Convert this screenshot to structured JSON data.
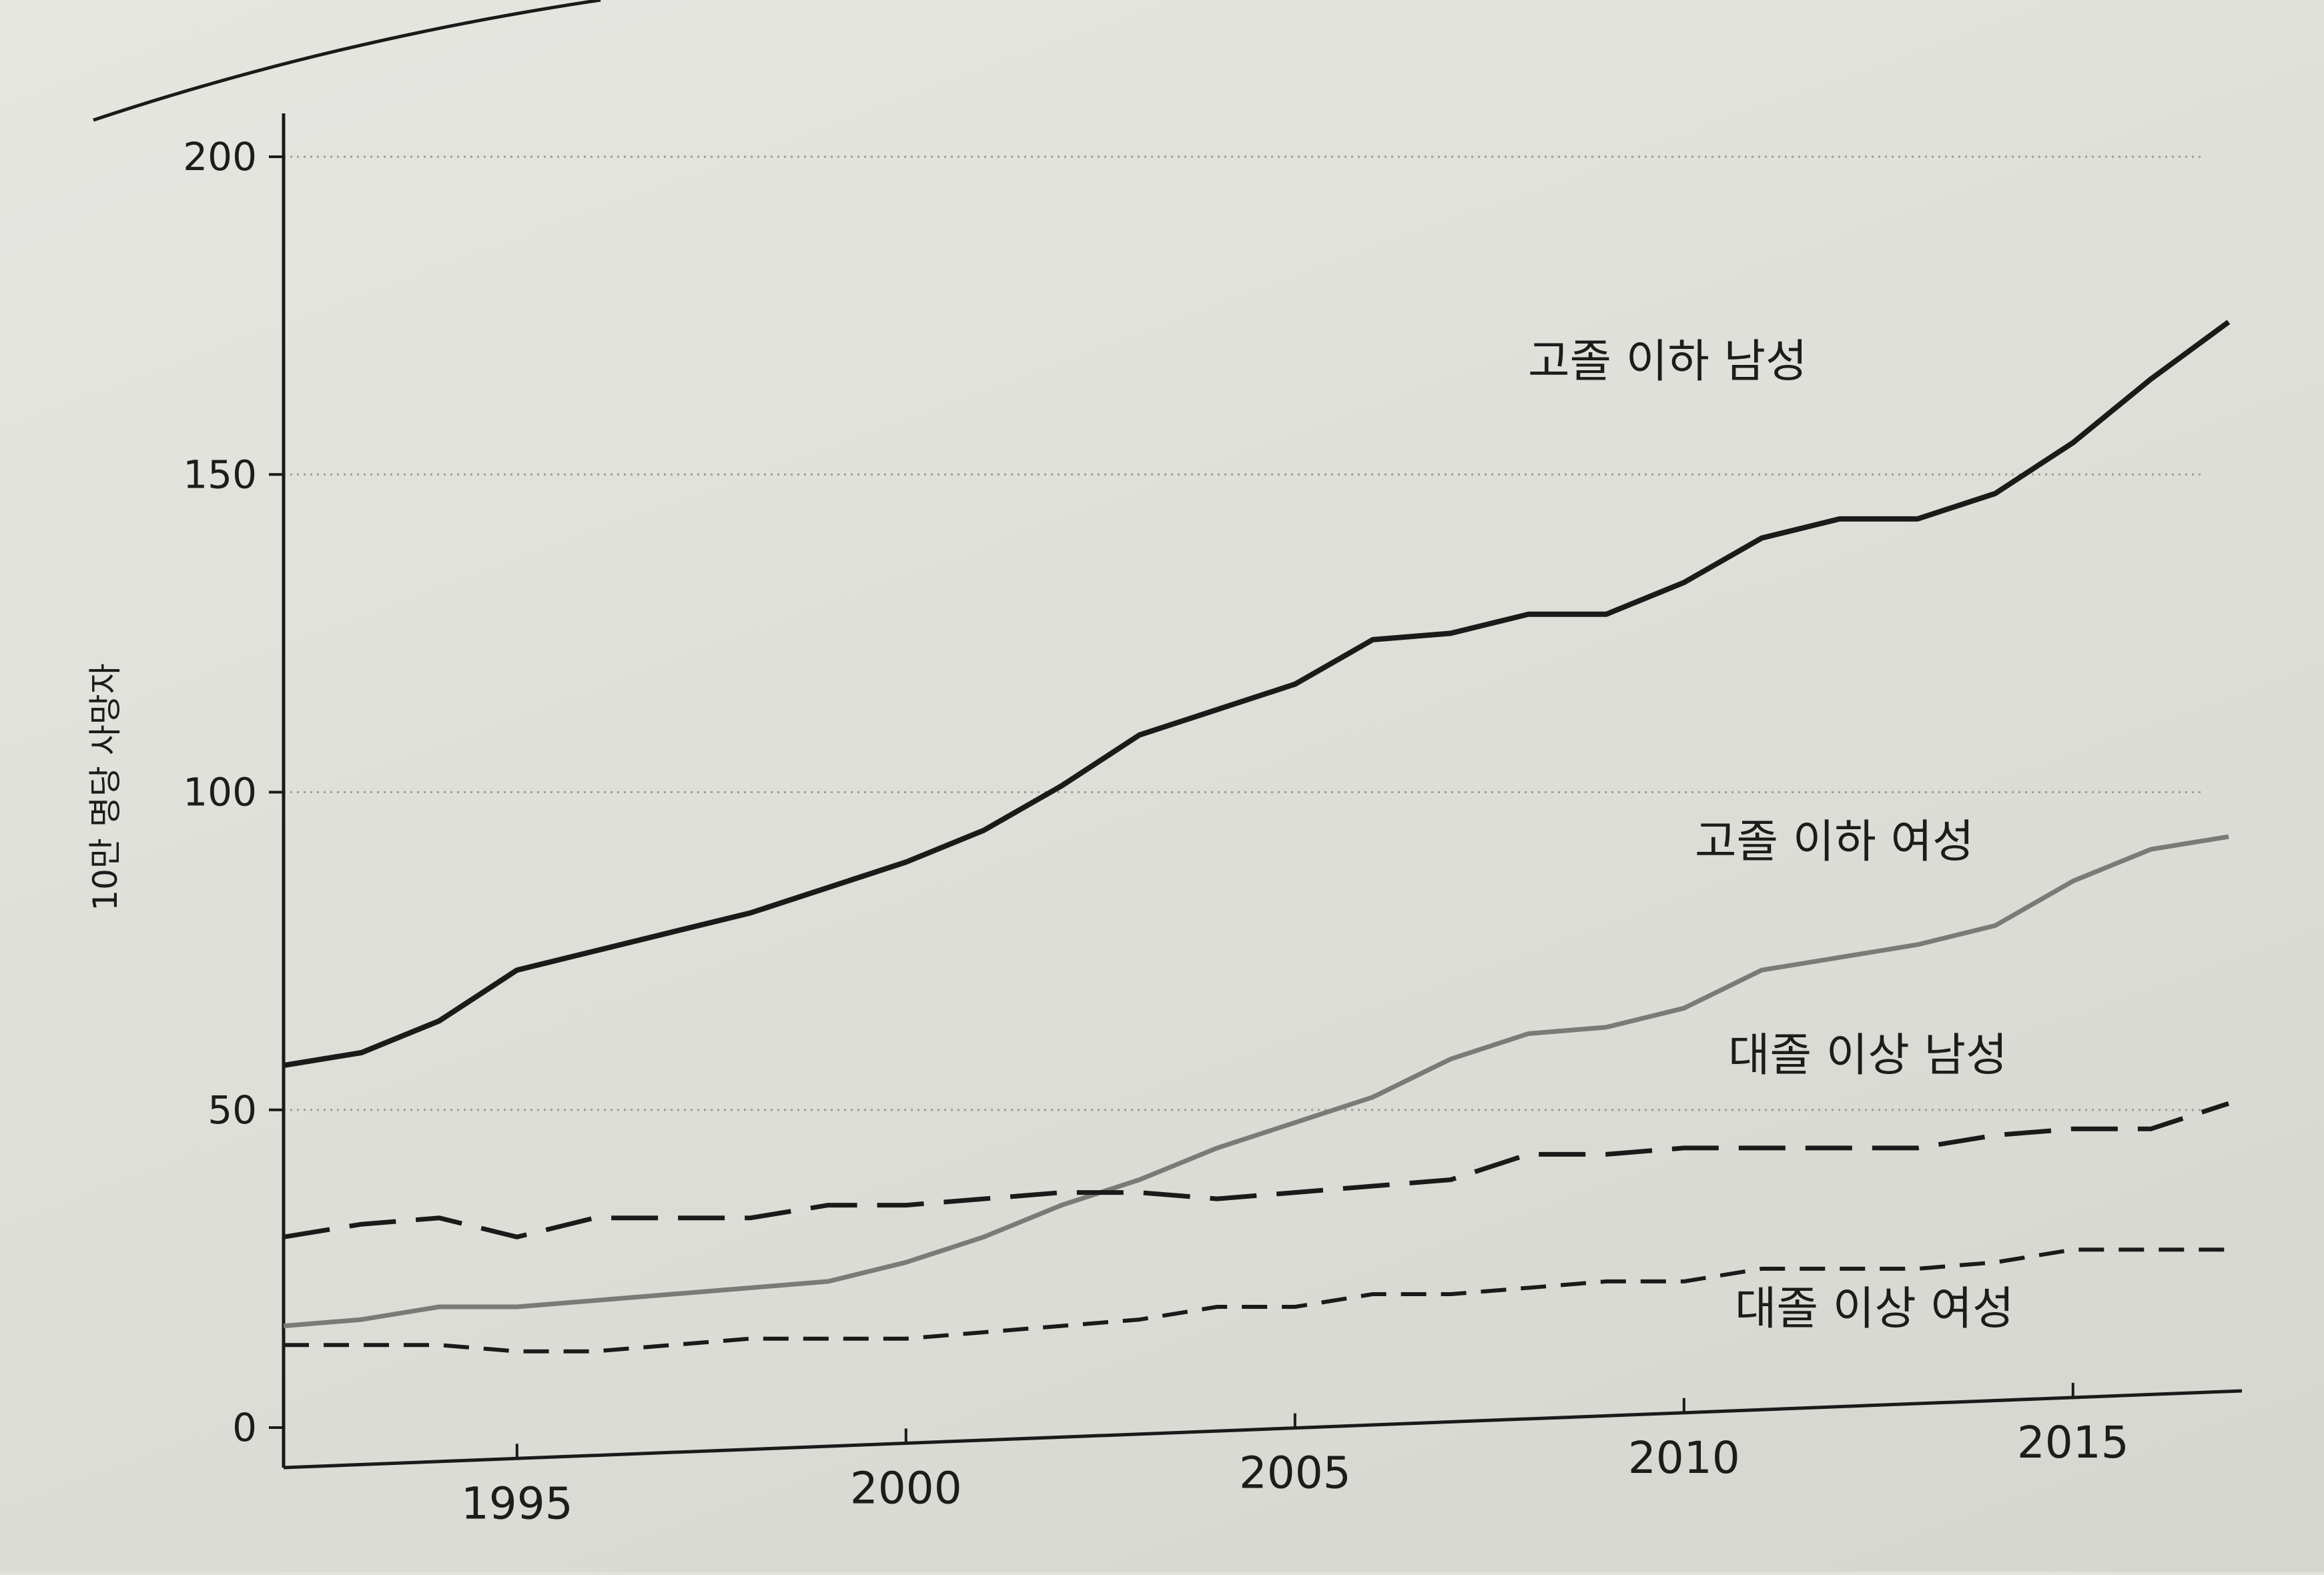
{
  "chart_data": {
    "type": "line",
    "title": "",
    "xlabel": "",
    "ylabel": "10만 명당 사망자",
    "xlim": [
      1992,
      2017
    ],
    "ylim": [
      0,
      200
    ],
    "yticks": [
      0,
      50,
      100,
      150,
      200
    ],
    "xticks": [
      1995,
      2000,
      2005,
      2010,
      2015
    ],
    "grid": true,
    "legend": "inline",
    "x": [
      1992,
      1993,
      1994,
      1995,
      1996,
      1997,
      1998,
      1999,
      2000,
      2001,
      2002,
      2003,
      2004,
      2005,
      2006,
      2007,
      2008,
      2009,
      2010,
      2011,
      2012,
      2013,
      2014,
      2015,
      2016,
      2017
    ],
    "series": [
      {
        "name": "고졸 이하 남성",
        "style": "solid-black",
        "values": [
          57,
          59,
          64,
          72,
          75,
          78,
          81,
          85,
          89,
          94,
          101,
          109,
          113,
          117,
          124,
          125,
          128,
          128,
          133,
          140,
          143,
          143,
          147,
          155,
          165,
          174
        ]
      },
      {
        "name": "고졸 이하 여성",
        "style": "solid-gray",
        "values": [
          16,
          17,
          19,
          19,
          20,
          21,
          22,
          23,
          26,
          30,
          35,
          39,
          44,
          48,
          52,
          58,
          62,
          63,
          66,
          72,
          74,
          76,
          79,
          86,
          91,
          93
        ]
      },
      {
        "name": "대졸 이상 남성",
        "style": "dashed-long",
        "values": [
          30,
          32,
          33,
          30,
          33,
          33,
          33,
          35,
          35,
          36,
          37,
          37,
          36,
          37,
          38,
          39,
          43,
          43,
          44,
          44,
          44,
          44,
          46,
          47,
          47,
          51
        ]
      },
      {
        "name": "대졸 이상 여성",
        "style": "dashed-short",
        "values": [
          13,
          13,
          13,
          12,
          12,
          13,
          14,
          14,
          14,
          15,
          16,
          17,
          19,
          19,
          21,
          21,
          22,
          23,
          23,
          25,
          25,
          25,
          26,
          28,
          28,
          28
        ]
      }
    ]
  },
  "colors": {
    "black_series": "#1a1a1a",
    "gray_series": "#7a7a78",
    "grid": "#9c9c98"
  }
}
